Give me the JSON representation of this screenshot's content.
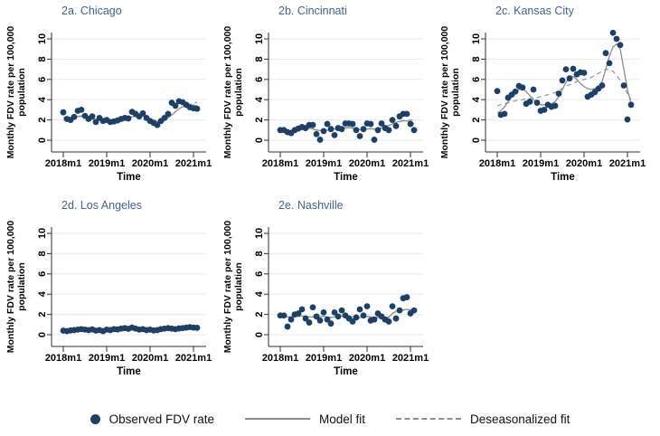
{
  "figure": {
    "ylabel_line1": "Monthly FDV rate per 100,000",
    "ylabel_line2": "population",
    "xlabel": "Time",
    "colors": {
      "dot": "#1e3f66",
      "model_fit_line": "#8c8c8c",
      "deseasonalized_line": "#949494",
      "gridline": "#e9eef2",
      "axis": "#2f2f2f",
      "panel_title": "#44618b",
      "axis_text": "#000000"
    },
    "legend": {
      "items": [
        {
          "marker": "dot",
          "label": "Observed FDV rate"
        },
        {
          "marker": "solid-line",
          "label": "Model fit"
        },
        {
          "marker": "dashed-line",
          "label": "Deseasonalized fit"
        }
      ]
    }
  },
  "chart_data": [
    {
      "type": "scatter",
      "title": "2a. Chicago",
      "xlabel": "Time",
      "ylabel": "Monthly FDV rate per 100,000 population",
      "x_start": "2018m1",
      "x_step": "1 month",
      "x_tick_labels": [
        "2018m1",
        "2019m1",
        "2020m1",
        "2021m1"
      ],
      "yticks": [
        0,
        2,
        4,
        6,
        8,
        10
      ],
      "ylim": [
        0,
        10
      ],
      "series": [
        {
          "name": "Observed FDV rate",
          "style": "points",
          "values": [
            2.75,
            2.1,
            2.0,
            2.3,
            2.9,
            3.0,
            2.4,
            2.1,
            2.35,
            1.8,
            2.2,
            1.9,
            2.0,
            1.8,
            1.85,
            1.95,
            2.1,
            2.2,
            2.15,
            2.8,
            2.6,
            2.35,
            2.65,
            2.2,
            1.9,
            1.7,
            1.5,
            1.9,
            2.2,
            2.6,
            3.7,
            3.4,
            3.85,
            3.75,
            3.5,
            3.25,
            3.15,
            3.1
          ]
        },
        {
          "name": "Model fit",
          "style": "line",
          "values": [
            2.2,
            2.15,
            2.1,
            2.2,
            2.35,
            2.4,
            2.3,
            2.2,
            2.1,
            2.05,
            2.0,
            2.0,
            2.0,
            1.95,
            1.95,
            2.0,
            2.1,
            2.2,
            2.25,
            2.3,
            2.35,
            2.4,
            2.4,
            2.3,
            2.1,
            1.95,
            1.85,
            1.9,
            2.0,
            2.2,
            2.5,
            2.8,
            3.1,
            3.3,
            3.45,
            3.5,
            3.45,
            3.4
          ]
        },
        {
          "name": "Deseasonalized fit",
          "style": "dashed",
          "values": [
            2.2,
            2.15,
            2.1,
            2.18,
            2.3,
            2.35,
            2.28,
            2.2,
            2.1,
            2.05,
            2.0,
            2.0,
            2.0,
            1.97,
            1.97,
            2.02,
            2.1,
            2.2,
            2.25,
            2.3,
            2.35,
            2.38,
            2.38,
            2.3,
            2.12,
            2.0,
            1.9,
            1.95,
            2.05,
            2.25,
            2.5,
            2.8,
            3.1,
            3.3,
            3.45,
            3.55,
            3.65,
            3.75
          ]
        }
      ]
    },
    {
      "type": "scatter",
      "title": "2b. Cincinnati",
      "xlabel": "Time",
      "ylabel": "Monthly FDV rate per 100,000 population",
      "x_start": "2018m1",
      "x_step": "1 month",
      "x_tick_labels": [
        "2018m1",
        "2019m1",
        "2020m1",
        "2021m1"
      ],
      "yticks": [
        0,
        2,
        4,
        6,
        8,
        10
      ],
      "ylim": [
        0,
        10
      ],
      "series": [
        {
          "name": "Observed FDV rate",
          "style": "points",
          "values": [
            1.0,
            1.0,
            0.8,
            0.7,
            1.0,
            1.15,
            1.3,
            1.2,
            1.5,
            1.5,
            0.6,
            0.05,
            0.9,
            1.6,
            1.1,
            0.5,
            1.2,
            1.1,
            1.65,
            1.65,
            1.6,
            1.0,
            0.4,
            1.1,
            1.65,
            1.6,
            0.05,
            1.0,
            1.65,
            1.2,
            1.0,
            2.0,
            1.4,
            2.35,
            2.6,
            2.6,
            1.6,
            1.0
          ]
        },
        {
          "name": "Model fit",
          "style": "line",
          "values": [
            1.0,
            1.0,
            0.95,
            0.95,
            1.0,
            1.1,
            1.15,
            1.2,
            1.2,
            1.1,
            1.0,
            0.95,
            0.95,
            1.0,
            1.05,
            1.1,
            1.15,
            1.2,
            1.25,
            1.25,
            1.2,
            1.1,
            1.05,
            1.05,
            1.1,
            1.15,
            1.1,
            1.1,
            1.2,
            1.3,
            1.45,
            1.6,
            1.75,
            1.85,
            1.9,
            1.9,
            1.85,
            1.6
          ]
        },
        {
          "name": "Deseasonalized fit",
          "style": "dashed",
          "values": [
            1.0,
            1.0,
            0.97,
            0.97,
            1.02,
            1.1,
            1.15,
            1.18,
            1.18,
            1.1,
            1.02,
            0.98,
            0.98,
            1.02,
            1.06,
            1.1,
            1.15,
            1.2,
            1.23,
            1.23,
            1.18,
            1.1,
            1.06,
            1.06,
            1.1,
            1.13,
            1.1,
            1.12,
            1.22,
            1.32,
            1.47,
            1.62,
            1.77,
            1.88,
            1.95,
            2.0,
            1.98,
            1.95
          ]
        }
      ]
    },
    {
      "type": "scatter",
      "title": "2c. Kansas City",
      "xlabel": "Time",
      "ylabel": "Monthly FDV rate per 100,000 population",
      "x_start": "2018m1",
      "x_step": "1 month",
      "x_tick_labels": [
        "2018m1",
        "2019m1",
        "2020m1",
        "2021m1"
      ],
      "yticks": [
        0,
        2,
        4,
        6,
        8,
        10
      ],
      "ylim": [
        0,
        10
      ],
      "series": [
        {
          "name": "Observed FDV rate",
          "style": "points",
          "values": [
            4.85,
            2.5,
            2.6,
            4.2,
            4.5,
            4.8,
            5.35,
            5.2,
            3.6,
            3.8,
            5.0,
            3.7,
            2.9,
            3.0,
            3.5,
            3.3,
            3.4,
            4.6,
            5.9,
            7.0,
            6.1,
            7.05,
            6.5,
            6.7,
            6.65,
            4.3,
            4.5,
            4.75,
            5.1,
            5.4,
            8.6,
            7.6,
            10.6,
            10.0,
            9.4,
            5.4,
            2.05,
            3.5
          ]
        },
        {
          "name": "Model fit",
          "style": "line",
          "values": [
            2.7,
            2.9,
            3.3,
            3.8,
            4.3,
            4.7,
            5.0,
            5.1,
            4.8,
            4.4,
            4.0,
            3.7,
            3.5,
            3.5,
            3.5,
            3.6,
            3.8,
            4.3,
            5.0,
            5.7,
            6.2,
            6.3,
            6.0,
            5.6,
            5.3,
            5.1,
            5.0,
            5.1,
            5.3,
            5.8,
            7.0,
            8.3,
            9.2,
            9.5,
            9.0,
            7.0,
            5.0,
            3.6
          ]
        },
        {
          "name": "Deseasonalized fit",
          "style": "dashed",
          "values": [
            3.4,
            3.5,
            3.6,
            3.7,
            3.8,
            3.9,
            4.0,
            4.0,
            4.1,
            4.1,
            4.2,
            4.2,
            4.3,
            4.4,
            4.5,
            4.6,
            4.7,
            4.9,
            5.1,
            5.3,
            5.5,
            5.6,
            5.8,
            5.9,
            6.0,
            6.1,
            6.2,
            6.4,
            6.6,
            6.8,
            7.0,
            7.0,
            6.8,
            6.4,
            5.9,
            5.3,
            4.6,
            4.0
          ]
        }
      ]
    },
    {
      "type": "scatter",
      "title": "2d. Los Angeles",
      "xlabel": "Time",
      "ylabel": "Monthly FDV rate per 100,000 population",
      "x_start": "2018m1",
      "x_step": "1 month",
      "x_tick_labels": [
        "2018m1",
        "2019m1",
        "2020m1",
        "2021m1"
      ],
      "yticks": [
        0,
        2,
        4,
        6,
        8,
        10
      ],
      "ylim": [
        0,
        10
      ],
      "series": [
        {
          "name": "Observed FDV rate",
          "style": "points",
          "values": [
            0.4,
            0.35,
            0.42,
            0.45,
            0.5,
            0.55,
            0.5,
            0.45,
            0.52,
            0.4,
            0.45,
            0.35,
            0.5,
            0.45,
            0.55,
            0.52,
            0.6,
            0.65,
            0.58,
            0.7,
            0.6,
            0.5,
            0.55,
            0.45,
            0.5,
            0.42,
            0.45,
            0.55,
            0.6,
            0.65,
            0.6,
            0.55,
            0.62,
            0.65,
            0.7,
            0.75,
            0.7,
            0.68
          ]
        },
        {
          "name": "Model fit",
          "style": "line",
          "values": [
            0.4,
            0.41,
            0.43,
            0.45,
            0.47,
            0.49,
            0.49,
            0.48,
            0.46,
            0.44,
            0.43,
            0.43,
            0.45,
            0.47,
            0.5,
            0.53,
            0.56,
            0.58,
            0.59,
            0.59,
            0.57,
            0.54,
            0.51,
            0.49,
            0.48,
            0.48,
            0.5,
            0.53,
            0.56,
            0.59,
            0.61,
            0.62,
            0.63,
            0.65,
            0.67,
            0.69,
            0.7,
            0.7
          ]
        },
        {
          "name": "Deseasonalized fit",
          "style": "dashed",
          "values": [
            0.4,
            0.41,
            0.43,
            0.45,
            0.47,
            0.48,
            0.48,
            0.47,
            0.46,
            0.44,
            0.44,
            0.44,
            0.46,
            0.48,
            0.5,
            0.53,
            0.55,
            0.57,
            0.58,
            0.58,
            0.56,
            0.54,
            0.52,
            0.5,
            0.49,
            0.49,
            0.51,
            0.54,
            0.56,
            0.58,
            0.6,
            0.62,
            0.63,
            0.65,
            0.67,
            0.68,
            0.69,
            0.7
          ]
        }
      ]
    },
    {
      "type": "scatter",
      "title": "2e. Nashville",
      "xlabel": "Time",
      "ylabel": "Monthly FDV rate per 100,000 population",
      "x_start": "2018m1",
      "x_step": "1 month",
      "x_tick_labels": [
        "2018m1",
        "2019m1",
        "2020m1",
        "2021m1"
      ],
      "yticks": [
        0,
        2,
        4,
        6,
        8,
        10
      ],
      "ylim": [
        0,
        10
      ],
      "series": [
        {
          "name": "Observed FDV rate",
          "style": "points",
          "values": [
            1.9,
            1.9,
            0.8,
            1.5,
            2.0,
            2.1,
            2.5,
            1.6,
            1.2,
            2.7,
            1.8,
            1.4,
            2.2,
            1.5,
            1.1,
            2.2,
            1.8,
            2.4,
            1.9,
            1.6,
            1.3,
            1.7,
            2.5,
            1.9,
            2.8,
            1.4,
            1.5,
            2.1,
            1.8,
            1.5,
            1.3,
            2.8,
            1.6,
            2.4,
            3.6,
            3.7,
            2.1,
            2.4
          ]
        },
        {
          "name": "Model fit",
          "style": "line",
          "values": [
            1.8,
            1.8,
            1.75,
            1.75,
            1.8,
            1.8,
            1.85,
            1.8,
            1.75,
            1.75,
            1.8,
            1.8,
            1.8,
            1.75,
            1.7,
            1.75,
            1.8,
            1.85,
            1.85,
            1.8,
            1.75,
            1.7,
            1.7,
            1.75,
            1.8,
            1.75,
            1.7,
            1.7,
            1.7,
            1.65,
            1.7,
            2.1,
            2.3,
            2.4,
            2.45,
            2.5,
            2.45,
            2.5
          ]
        },
        {
          "name": "Deseasonalized fit",
          "style": "dashed",
          "values": [
            1.8,
            1.8,
            1.77,
            1.77,
            1.8,
            1.8,
            1.83,
            1.8,
            1.77,
            1.77,
            1.8,
            1.8,
            1.8,
            1.77,
            1.72,
            1.77,
            1.8,
            1.83,
            1.83,
            1.8,
            1.77,
            1.72,
            1.72,
            1.77,
            1.8,
            1.77,
            1.72,
            1.72,
            1.72,
            1.68,
            1.75,
            2.1,
            2.28,
            2.38,
            2.42,
            2.46,
            2.42,
            2.46
          ]
        }
      ]
    }
  ]
}
